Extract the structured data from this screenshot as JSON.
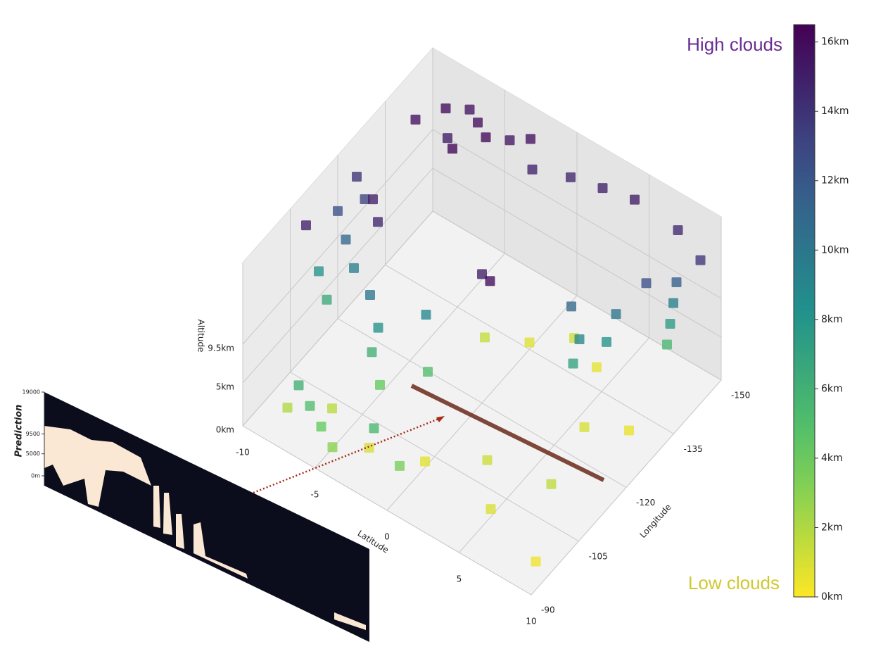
{
  "chart_data": {
    "type": "scatter3d",
    "annotations": [
      "High clouds",
      "Low clouds"
    ],
    "xlabel": "Latitude",
    "ylabel": "Longitude",
    "zlabel": "Altitude",
    "xlim": [
      -10,
      10
    ],
    "ylim": [
      -150,
      -90
    ],
    "zlim": [
      0,
      19
    ],
    "xticks": [
      -10,
      -5,
      0,
      5,
      10
    ],
    "yticks": [
      -150,
      -135,
      -120,
      -105,
      -90
    ],
    "zticks": [
      {
        "value": 0,
        "label": "0km"
      },
      {
        "value": 5,
        "label": "5km"
      },
      {
        "value": 9.5,
        "label": "9.5km"
      }
    ],
    "colormap": "viridis",
    "clim": [
      0,
      16.5
    ],
    "cticks": [
      {
        "value": 0,
        "label": "0km"
      },
      {
        "value": 2,
        "label": "2km"
      },
      {
        "value": 4,
        "label": "4km"
      },
      {
        "value": 6,
        "label": "6km"
      },
      {
        "value": 8,
        "label": "8km"
      },
      {
        "value": 10,
        "label": "10km"
      },
      {
        "value": 12,
        "label": "12km"
      },
      {
        "value": 14,
        "label": "14km"
      },
      {
        "value": 16,
        "label": "16km"
      }
    ],
    "points": [
      {
        "lat": -9,
        "lon": -140,
        "alt": 15.8
      },
      {
        "lat": -8,
        "lon": -145,
        "alt": 16
      },
      {
        "lat": -7,
        "lon": -148,
        "alt": 15.6
      },
      {
        "lat": -6,
        "lon": -146,
        "alt": 15.9
      },
      {
        "lat": -5,
        "lon": -144,
        "alt": 16
      },
      {
        "lat": -4,
        "lon": -147,
        "alt": 15.4
      },
      {
        "lat": -3,
        "lon": -149,
        "alt": 15.7
      },
      {
        "lat": -7,
        "lon": -141,
        "alt": 15.2
      },
      {
        "lat": -6,
        "lon": -138,
        "alt": 16.2
      },
      {
        "lat": -2,
        "lon": -145,
        "alt": 14.8
      },
      {
        "lat": 0,
        "lon": -148,
        "alt": 14.6
      },
      {
        "lat": 2,
        "lon": -149,
        "alt": 14.9
      },
      {
        "lat": 4,
        "lon": -150,
        "alt": 15.1
      },
      {
        "lat": 7,
        "lon": -150,
        "alt": 14.5
      },
      {
        "lat": 9,
        "lon": -148,
        "alt": 13.8
      },
      {
        "lat": -10,
        "lon": -126,
        "alt": 14
      },
      {
        "lat": -9,
        "lon": -124,
        "alt": 13.2
      },
      {
        "lat": -10,
        "lon": -120,
        "alt": 12.5
      },
      {
        "lat": -9,
        "lon": -118,
        "alt": 11
      },
      {
        "lat": -8,
        "lon": -116,
        "alt": 9.5
      },
      {
        "lat": -10,
        "lon": -114,
        "alt": 8
      },
      {
        "lat": -9,
        "lon": -112,
        "alt": 6.5
      },
      {
        "lat": -8,
        "lon": -122,
        "alt": 15
      },
      {
        "lat": -7,
        "lon": -119,
        "alt": 14.6
      },
      {
        "lat": -10,
        "lon": -110,
        "alt": 15
      },
      {
        "lat": 8,
        "lon": -145,
        "alt": 11.5
      },
      {
        "lat": 8,
        "lon": -144,
        "alt": 9.5
      },
      {
        "lat": 8,
        "lon": -143,
        "alt": 7.5
      },
      {
        "lat": 8,
        "lon": -142,
        "alt": 5.5
      },
      {
        "lat": 7,
        "lon": -140,
        "alt": 12.5
      },
      {
        "lat": -2,
        "lon": -130,
        "alt": 1.5
      },
      {
        "lat": 0,
        "lon": -135,
        "alt": 0.8
      },
      {
        "lat": 2,
        "lon": -140,
        "alt": 1.2
      },
      {
        "lat": 4,
        "lon": -138,
        "alt": 0.6
      },
      {
        "lat": 6,
        "lon": -125,
        "alt": 1
      },
      {
        "lat": 8,
        "lon": -130,
        "alt": 0.5
      },
      {
        "lat": -6,
        "lon": -112,
        "alt": 10
      },
      {
        "lat": -5,
        "lon": -110,
        "alt": 8
      },
      {
        "lat": -5,
        "lon": -108,
        "alt": 6
      },
      {
        "lat": -4,
        "lon": -106,
        "alt": 4
      },
      {
        "lat": -3,
        "lon": -116,
        "alt": 9
      },
      {
        "lat": -2,
        "lon": -112,
        "alt": 5
      },
      {
        "lat": 0,
        "lon": -120,
        "alt": 15
      },
      {
        "lat": 1,
        "lon": -118,
        "alt": 16
      },
      {
        "lat": 4,
        "lon": -130,
        "alt": 11
      },
      {
        "lat": 5,
        "lon": -128,
        "alt": 9
      },
      {
        "lat": 5,
        "lon": -126,
        "alt": 7
      },
      {
        "lat": 6,
        "lon": -135,
        "alt": 10
      },
      {
        "lat": 6,
        "lon": -132,
        "alt": 8
      },
      {
        "lat": -6,
        "lon": -100,
        "alt": 1.8
      },
      {
        "lat": -3,
        "lon": -98,
        "alt": 1
      },
      {
        "lat": 0,
        "lon": -102,
        "alt": 0.7
      },
      {
        "lat": 3,
        "lon": -108,
        "alt": 1.3
      },
      {
        "lat": 5,
        "lon": -100,
        "alt": 0.9
      },
      {
        "lat": 7,
        "lon": -110,
        "alt": 1.6
      },
      {
        "lat": 9,
        "lon": -96,
        "alt": 0.4
      },
      {
        "lat": -8,
        "lon": -95,
        "alt": 2
      },
      {
        "lat": -7,
        "lon": -94,
        "alt": 6
      },
      {
        "lat": -6,
        "lon": -93,
        "alt": 5
      },
      {
        "lat": -5,
        "lon": -92,
        "alt": 4
      },
      {
        "lat": -4,
        "lon": -91,
        "alt": 3
      },
      {
        "lat": -2,
        "lon": -95,
        "alt": 5.5
      },
      {
        "lat": 0,
        "lon": -94,
        "alt": 3.5
      }
    ]
  },
  "inset": {
    "ylabel": "Prediction",
    "ylim": [
      0,
      19000
    ],
    "yticks": [
      {
        "value": 0,
        "label": "0m"
      },
      5000,
      9500,
      19000
    ]
  }
}
